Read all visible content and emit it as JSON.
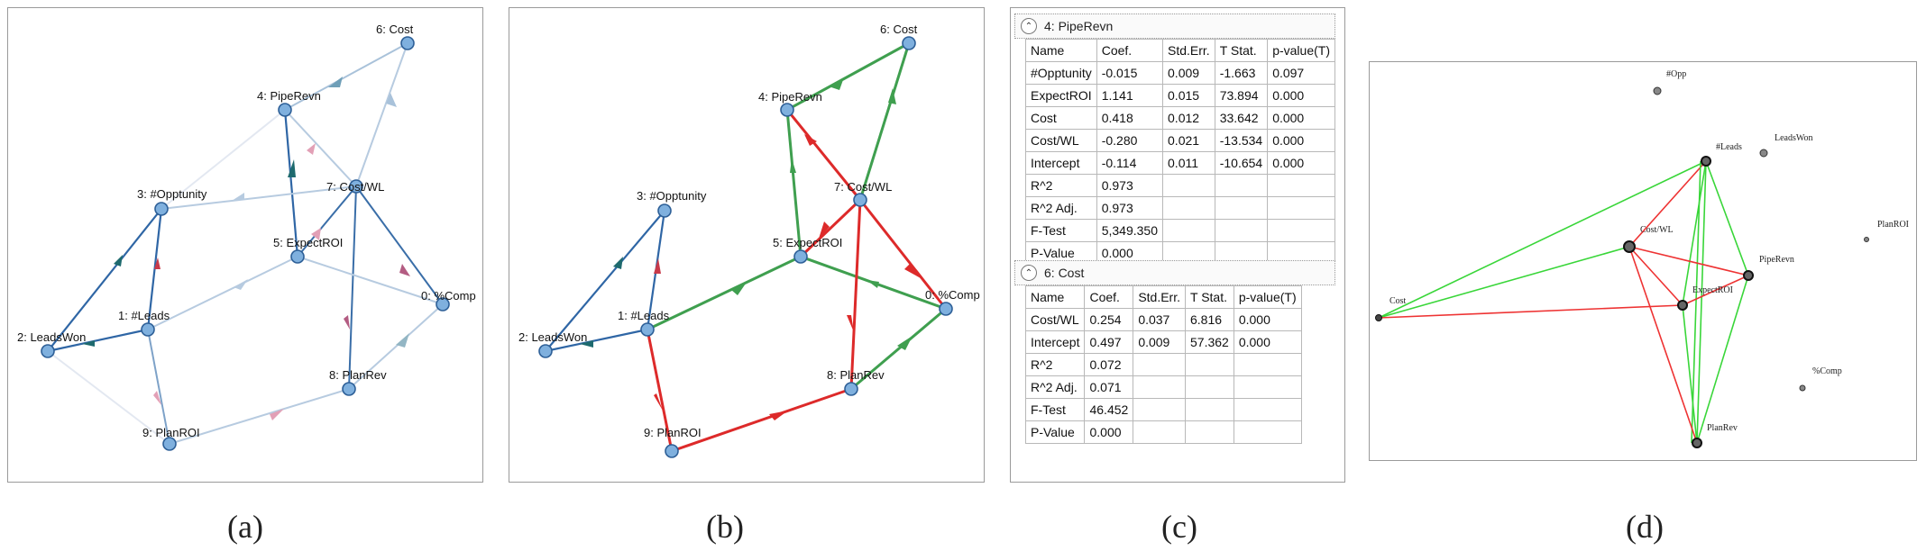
{
  "captions": [
    "(a)",
    "(b)",
    "(c)",
    "(d)"
  ],
  "graph_nodes": [
    {
      "id": "cost",
      "label": "6: Cost"
    },
    {
      "id": "pipe",
      "label": "4: PipeRevn"
    },
    {
      "id": "opp",
      "label": "3: #Opptunity"
    },
    {
      "id": "costwl",
      "label": "7: Cost/WL"
    },
    {
      "id": "expect",
      "label": "5: ExpectROI"
    },
    {
      "id": "comp",
      "label": "0: %Comp"
    },
    {
      "id": "leadswon",
      "label": "2: LeadsWon"
    },
    {
      "id": "leads",
      "label": "1: #Leads"
    },
    {
      "id": "planrev",
      "label": "8: PlanRev"
    },
    {
      "id": "planroi",
      "label": "9: PlanROI"
    }
  ],
  "table_pipe": {
    "title": "4: PipeRevn",
    "columns": [
      "Name",
      "Coef.",
      "Std.Err.",
      "T Stat.",
      "p-value(T)"
    ],
    "rows": [
      [
        "#Opptunity",
        "-0.015",
        "0.009",
        "-1.663",
        "0.097"
      ],
      [
        "ExpectROI",
        "1.141",
        "0.015",
        "73.894",
        "0.000"
      ],
      [
        "Cost",
        "0.418",
        "0.012",
        "33.642",
        "0.000"
      ],
      [
        "Cost/WL",
        "-0.280",
        "0.021",
        "-13.534",
        "0.000"
      ],
      [
        "Intercept",
        "-0.114",
        "0.011",
        "-10.654",
        "0.000"
      ],
      [
        "R^2",
        "0.973",
        "",
        "",
        ""
      ],
      [
        "R^2 Adj.",
        "0.973",
        "",
        "",
        ""
      ],
      [
        "F-Test",
        "5,349.350",
        "",
        "",
        ""
      ],
      [
        "P-Value",
        "0.000",
        "",
        "",
        ""
      ]
    ]
  },
  "table_cost": {
    "title": "6: Cost",
    "columns": [
      "Name",
      "Coef.",
      "Std.Err.",
      "T Stat.",
      "p-value(T)"
    ],
    "rows": [
      [
        "Cost/WL",
        "0.254",
        "0.037",
        "6.816",
        "0.000"
      ],
      [
        "Intercept",
        "0.497",
        "0.009",
        "57.362",
        "0.000"
      ],
      [
        "R^2",
        "0.072",
        "",
        "",
        ""
      ],
      [
        "R^2 Adj.",
        "0.071",
        "",
        "",
        ""
      ],
      [
        "F-Test",
        "46.452",
        "",
        "",
        ""
      ],
      [
        "P-Value",
        "0.000",
        "",
        "",
        ""
      ]
    ]
  },
  "scatter_labels": {
    "opp": "#Opp",
    "leads": "#Leads",
    "leadswon": "LeadsWon",
    "planroi": "PlanROI",
    "costwl": "Cost/WL",
    "piperevn": "PipeRevn",
    "cost": "Cost",
    "expectroi": "ExpectROI",
    "comp": "%Comp",
    "planrev": "PlanRev"
  },
  "colors": {
    "node_fill": "#7fb0de",
    "node_stroke": "#2d5f97",
    "edge_blue": "#3a6ea8",
    "edge_light": "#a9c2da",
    "edge_green": "#3f9f4f",
    "edge_red": "#dd2a2a",
    "line_green": "#39d639",
    "line_red": "#ee3333"
  }
}
